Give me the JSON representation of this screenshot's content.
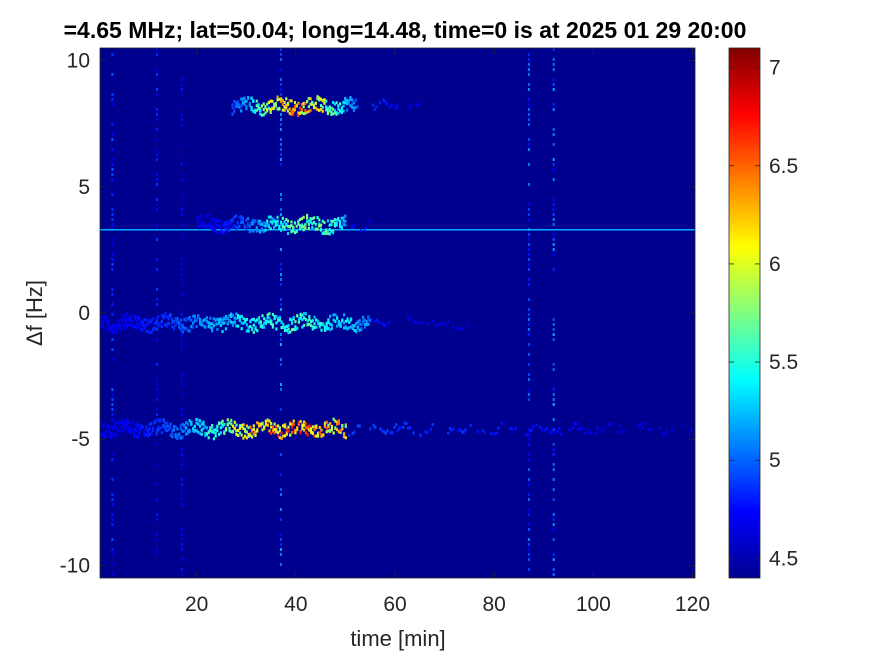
{
  "chart_data": {
    "type": "heatmap",
    "title": "=4.65 MHz;  lat=50.04; long=14.48, time=0 is at 2025 01 29 20:00",
    "xlabel": "time [min]",
    "ylabel": "Δf [Hz]",
    "xlim": [
      0.5,
      120.5
    ],
    "ylim": [
      -10.5,
      10.5
    ],
    "xticks": [
      20,
      40,
      60,
      80,
      100,
      120
    ],
    "xtick_labels": [
      "20",
      "40",
      "60",
      "80",
      "100",
      "120"
    ],
    "yticks": [
      10,
      5,
      0,
      -5,
      -10
    ],
    "ytick_labels": [
      "10",
      "5",
      "0",
      "-5",
      "-10"
    ],
    "colorbar": {
      "colormap": "jet",
      "clim": [
        4.4,
        7.1
      ],
      "ticks": [
        7,
        6.5,
        6,
        5.5,
        5,
        4.5
      ],
      "tick_labels": [
        "7",
        "6.5",
        "6",
        "5.5",
        "5",
        "4.5"
      ]
    },
    "background_color": "#00008f",
    "traces": [
      {
        "df_hz": 8.2,
        "t_start": 27,
        "t_end": 52,
        "peak_t": 40,
        "peak_value": 6.7,
        "tail_end": 65
      },
      {
        "df_hz": 3.5,
        "t_start": 20,
        "t_end": 50,
        "peak_t": 42,
        "peak_value": 5.9,
        "tail_end": 55
      },
      {
        "df_hz": -0.4,
        "t_start": 0,
        "t_end": 55,
        "peak_t": 38,
        "peak_value": 5.7,
        "tail_end": 75
      },
      {
        "df_hz": -4.6,
        "t_start": 0,
        "t_end": 50,
        "peak_t": 40,
        "peak_value": 6.9,
        "tail_end": 120
      }
    ],
    "horizontal_line": {
      "df_hz": 3.3,
      "value": 5.2
    },
    "vertical_streaks": [
      {
        "t": 3,
        "value": 5.0
      },
      {
        "t": 12,
        "value": 4.9
      },
      {
        "t": 17,
        "value": 4.8
      },
      {
        "t": 37,
        "value": 5.2
      },
      {
        "t": 87,
        "value": 5.1
      },
      {
        "t": 92,
        "value": 5.2
      }
    ]
  }
}
